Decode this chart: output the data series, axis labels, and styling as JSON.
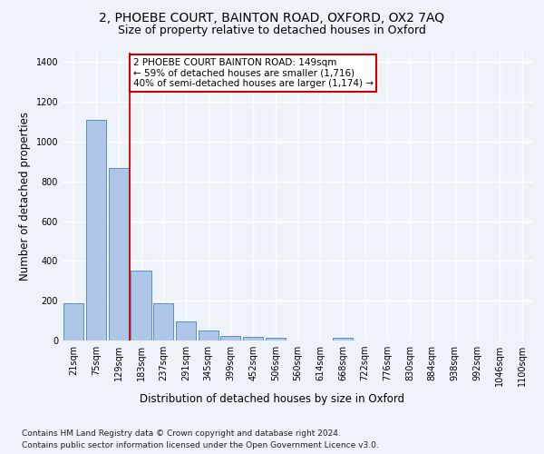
{
  "title_line1": "2, PHOEBE COURT, BAINTON ROAD, OXFORD, OX2 7AQ",
  "title_line2": "Size of property relative to detached houses in Oxford",
  "xlabel": "Distribution of detached houses by size in Oxford",
  "ylabel": "Number of detached properties",
  "categories": [
    "21sqm",
    "75sqm",
    "129sqm",
    "183sqm",
    "237sqm",
    "291sqm",
    "345sqm",
    "399sqm",
    "452sqm",
    "506sqm",
    "560sqm",
    "614sqm",
    "668sqm",
    "722sqm",
    "776sqm",
    "830sqm",
    "884sqm",
    "938sqm",
    "992sqm",
    "1046sqm",
    "1100sqm"
  ],
  "values": [
    185,
    1110,
    870,
    350,
    185,
    95,
    50,
    22,
    17,
    15,
    0,
    0,
    15,
    0,
    0,
    0,
    0,
    0,
    0,
    0,
    0
  ],
  "bar_color": "#aec6e8",
  "bar_edge_color": "#5a8fc2",
  "vline_x": 2.5,
  "vline_color": "#cc0000",
  "annotation_text": "2 PHOEBE COURT BAINTON ROAD: 149sqm\n← 59% of detached houses are smaller (1,716)\n40% of semi-detached houses are larger (1,174) →",
  "annotation_box_color": "#ffffff",
  "annotation_box_edge_color": "#cc0000",
  "ylim": [
    0,
    1450
  ],
  "yticks": [
    0,
    200,
    400,
    600,
    800,
    1000,
    1200,
    1400
  ],
  "footer_line1": "Contains HM Land Registry data © Crown copyright and database right 2024.",
  "footer_line2": "Contains public sector information licensed under the Open Government Licence v3.0.",
  "background_color": "#eef2f9",
  "plot_background_color": "#eef2f9",
  "grid_color": "#ffffff",
  "title_fontsize": 10,
  "subtitle_fontsize": 9,
  "label_fontsize": 8.5,
  "tick_fontsize": 7,
  "footer_fontsize": 6.5,
  "annotation_fontsize": 7.5
}
